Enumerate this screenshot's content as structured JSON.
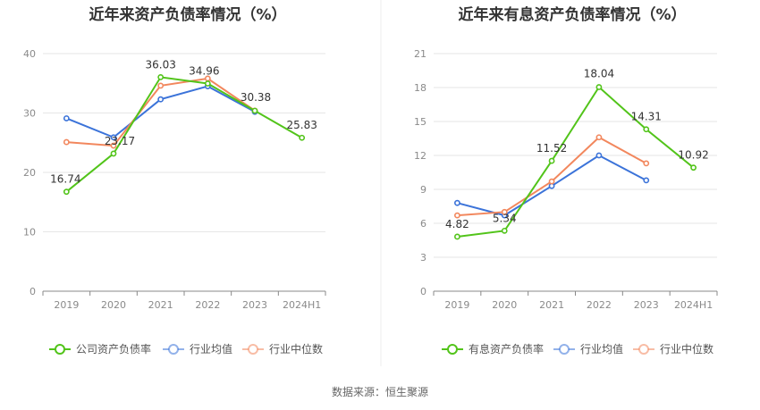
{
  "source_label": "数据来源：恒生聚源",
  "chart_data": [
    {
      "type": "line",
      "title": "近年来资产负债率情况（%）",
      "categories": [
        "2019",
        "2020",
        "2021",
        "2022",
        "2023",
        "2024H1"
      ],
      "ylim": [
        0,
        40
      ],
      "yticks": [
        0,
        10,
        20,
        30,
        40
      ],
      "ytick_labels": [
        "0",
        "10",
        "20",
        "30",
        "40"
      ],
      "grid": true,
      "legend_position": "bottom",
      "series": [
        {
          "name": "公司资产负债率",
          "color": "#52c41a",
          "values": [
            16.74,
            23.17,
            36.03,
            34.96,
            30.38,
            25.83
          ],
          "labels": [
            "16.74",
            "23.17",
            "36.03",
            "34.96",
            "30.38",
            "25.83"
          ]
        },
        {
          "name": "行业均值",
          "color": "#3b73d9",
          "values": [
            29.1,
            25.9,
            32.3,
            34.5,
            30.2,
            null
          ]
        },
        {
          "name": "行业中位数",
          "color": "#f2875d",
          "values": [
            25.1,
            24.5,
            34.6,
            35.8,
            30.4,
            null
          ]
        }
      ]
    },
    {
      "type": "line",
      "title": "近年来有息资产负债率情况（%）",
      "categories": [
        "2019",
        "2020",
        "2021",
        "2022",
        "2023",
        "2024H1"
      ],
      "ylim": [
        0,
        21
      ],
      "yticks": [
        0,
        3,
        6,
        9,
        12,
        15,
        18,
        21
      ],
      "ytick_labels": [
        "0",
        "3",
        "6",
        "9",
        "12",
        "15",
        "18",
        "21"
      ],
      "grid": true,
      "legend_position": "bottom",
      "series": [
        {
          "name": "有息资产负债率",
          "color": "#52c41a",
          "values": [
            4.82,
            5.34,
            11.52,
            18.04,
            14.31,
            10.92
          ],
          "labels": [
            "4.82",
            "5.34",
            "11.52",
            "18.04",
            "14.31",
            "10.92"
          ]
        },
        {
          "name": "行业均值",
          "color": "#3b73d9",
          "values": [
            7.8,
            6.7,
            9.3,
            12.0,
            9.8,
            null
          ]
        },
        {
          "name": "行业中位数",
          "color": "#f2875d",
          "values": [
            6.7,
            7.0,
            9.7,
            13.6,
            11.3,
            null
          ]
        }
      ]
    }
  ]
}
